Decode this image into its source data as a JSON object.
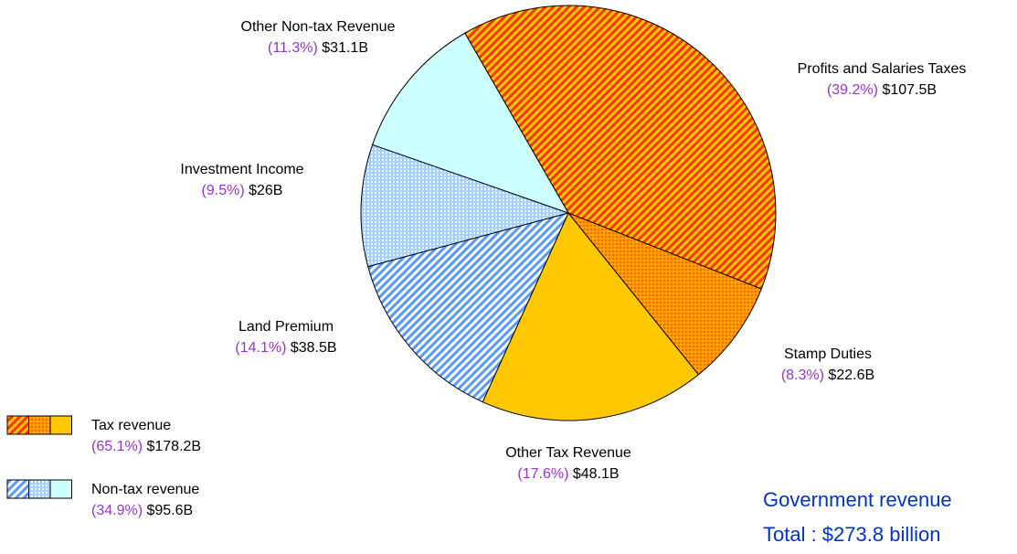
{
  "chart_data": {
    "type": "pie",
    "categories": [
      "Profits and Salaries Taxes",
      "Stamp Duties",
      "Other Tax Revenue",
      "Land Premium",
      "Investment Income",
      "Other Non-tax Revenue"
    ],
    "values": [
      107.5,
      22.6,
      48.1,
      38.5,
      26,
      31.1
    ],
    "value_labels": [
      "$107.5B",
      "$22.6B",
      "$48.1B",
      "$38.5B",
      "$26B",
      "$31.1B"
    ],
    "percent_labels": [
      "(39.2%)",
      "(8.3%)",
      "(17.6%)",
      "(14.1%)",
      "(9.5%)",
      "(11.3%)"
    ],
    "colors": [
      "#ff3300",
      "#ff9900",
      "#ffc800",
      "#5599ff",
      "#99ccff",
      "#ccffff"
    ],
    "legend": [
      {
        "name": "Tax revenue",
        "percent_label": "(65.1%)",
        "value_label": "$178.2B"
      },
      {
        "name": "Non-tax revenue",
        "percent_label": "(34.9%)",
        "value_label": "$95.6B"
      }
    ],
    "footer": [
      "Government revenue",
      "Total : $273.8 billion"
    ]
  }
}
